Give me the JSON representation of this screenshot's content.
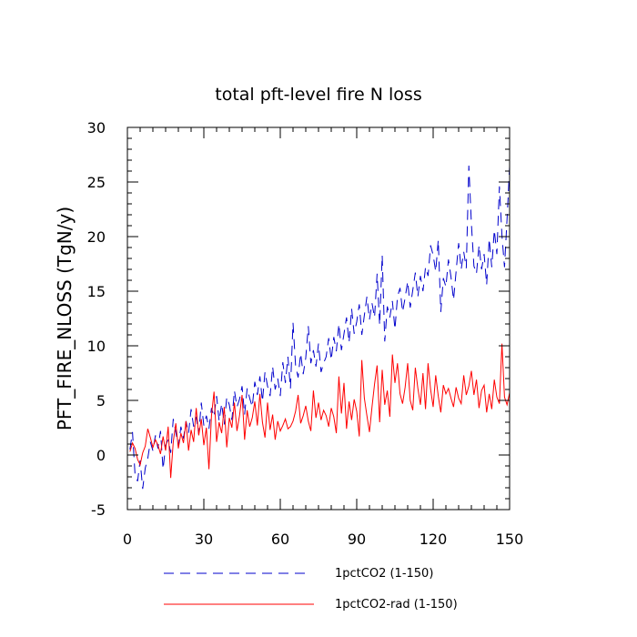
{
  "chart_data": {
    "type": "line",
    "title": "total pft-level fire N loss",
    "xlabel": "",
    "ylabel": "PFT_FIRE_NLOSS  (TgN/y)",
    "xlim": [
      0,
      150
    ],
    "ylim": [
      -5,
      30
    ],
    "xticks": [
      0,
      30,
      60,
      90,
      120,
      150
    ],
    "yticks": [
      -5,
      0,
      5,
      10,
      15,
      20,
      25,
      30
    ],
    "grid": false,
    "legend": "bottom",
    "series": [
      {
        "name": "1pctCO2 (1-150)",
        "color": "#0000cc",
        "dash": "dashed",
        "values": [
          0.5,
          2.1,
          -1.8,
          -2.4,
          -0.5,
          -3.1,
          -1.2,
          -0.3,
          1.2,
          0.4,
          1.8,
          0.6,
          2.2,
          -1.3,
          0.9,
          1.4,
          0.2,
          3.3,
          2.1,
          0.8,
          2.6,
          1.5,
          3.1,
          2.0,
          4.2,
          2.6,
          3.5,
          1.9,
          4.8,
          2.7,
          3.6,
          2.4,
          4.3,
          3.5,
          5.4,
          3.1,
          4.7,
          2.8,
          5.3,
          4.6,
          3.2,
          5.9,
          4.4,
          5.1,
          6.3,
          3.7,
          6.1,
          5.2,
          4.4,
          6.7,
          5.5,
          7.2,
          4.9,
          7.6,
          6.3,
          5.4,
          8.1,
          6.0,
          7.0,
          5.4,
          8.5,
          6.6,
          9.0,
          6.1,
          12.1,
          8.2,
          7.1,
          9.3,
          7.4,
          8.9,
          11.8,
          8.4,
          9.6,
          8.1,
          10.2,
          7.6,
          8.4,
          9.0,
          10.7,
          8.7,
          10.8,
          9.5,
          12.0,
          9.6,
          11.1,
          12.6,
          10.3,
          13.4,
          11.1,
          12.2,
          13.8,
          11.0,
          12.8,
          14.5,
          12.4,
          13.9,
          12.6,
          16.6,
          11.9,
          18.3,
          10.4,
          13.6,
          12.6,
          14.1,
          11.5,
          14.5,
          15.3,
          13.1,
          14.4,
          15.9,
          13.5,
          15.1,
          16.7,
          14.5,
          16.4,
          15.0,
          17.2,
          16.4,
          19.2,
          18.3,
          16.8,
          19.7,
          13.1,
          16.2,
          15.4,
          17.9,
          16.3,
          14.2,
          16.8,
          19.4,
          17.0,
          18.6,
          17.1,
          26.5,
          21.2,
          17.3,
          16.6,
          19.2,
          17.0,
          18.4,
          15.6,
          19.8,
          17.2,
          20.6,
          18.4,
          24.6,
          20.1,
          17.2,
          21.6,
          26.4
        ]
      },
      {
        "name": "1pctCO2-rad (1-150)",
        "color": "#ff0000",
        "dash": "solid",
        "values": [
          0.3,
          1.1,
          0.6,
          -0.4,
          -0.9,
          0.2,
          0.8,
          2.4,
          1.6,
          0.7,
          1.4,
          0.9,
          0.1,
          1.7,
          0.4,
          2.6,
          -2.1,
          1.2,
          2.9,
          0.6,
          2.0,
          1.1,
          3.1,
          0.4,
          2.3,
          1.2,
          4.3,
          1.8,
          3.3,
          0.9,
          2.5,
          -1.3,
          3.6,
          5.8,
          1.2,
          3.0,
          2.0,
          4.4,
          0.7,
          3.4,
          2.5,
          4.8,
          2.2,
          3.6,
          5.5,
          1.4,
          4.1,
          2.6,
          3.4,
          4.9,
          2.7,
          5.6,
          3.0,
          1.6,
          4.8,
          2.3,
          3.7,
          1.4,
          3.1,
          2.2,
          2.7,
          3.3,
          2.4,
          2.6,
          3.1,
          4.0,
          5.5,
          2.9,
          3.6,
          4.5,
          3.1,
          2.2,
          5.9,
          3.4,
          4.8,
          3.2,
          4.1,
          3.6,
          2.6,
          4.3,
          3.5,
          2.0,
          7.2,
          3.8,
          6.6,
          2.4,
          4.9,
          3.2,
          5.1,
          4.0,
          1.7,
          8.7,
          5.2,
          3.6,
          2.1,
          4.4,
          6.5,
          8.2,
          3.0,
          7.8,
          4.6,
          5.9,
          3.5,
          9.2,
          6.6,
          8.4,
          5.6,
          4.7,
          6.2,
          8.4,
          5.0,
          4.1,
          8.0,
          6.1,
          4.6,
          7.5,
          4.2,
          8.4,
          6.0,
          4.4,
          7.3,
          5.4,
          3.9,
          6.4,
          5.6,
          6.1,
          5.2,
          4.4,
          6.2,
          5.2,
          4.7,
          7.3,
          5.5,
          6.3,
          7.7,
          5.5,
          6.9,
          4.3,
          5.9,
          6.4,
          3.9,
          5.6,
          4.2,
          6.9,
          5.3,
          4.7,
          10.2,
          5.3,
          4.6,
          5.7
        ]
      }
    ]
  }
}
